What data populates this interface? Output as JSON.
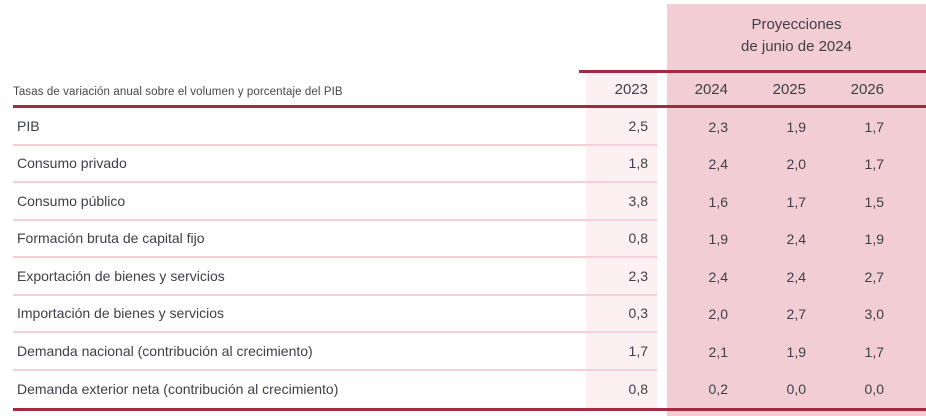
{
  "header": {
    "projections_title_line1": "Proyecciones",
    "projections_title_line2": "de junio de 2024",
    "row_label": "Tasas de variación anual sobre el volumen y porcentaje del PIB"
  },
  "table": {
    "years": [
      "2023",
      "2024",
      "2025",
      "2026"
    ],
    "rows": [
      {
        "label": "PIB",
        "values": [
          "2,5",
          "2,3",
          "1,9",
          "1,7"
        ]
      },
      {
        "label": "Consumo privado",
        "values": [
          "1,8",
          "2,4",
          "2,0",
          "1,7"
        ]
      },
      {
        "label": "Consumo público",
        "values": [
          "3,8",
          "1,6",
          "1,7",
          "1,5"
        ]
      },
      {
        "label": "Formación bruta de capital fijo",
        "values": [
          "0,8",
          "1,9",
          "2,4",
          "1,9"
        ]
      },
      {
        "label": "Exportación de bienes y servicios",
        "values": [
          "2,3",
          "2,4",
          "2,4",
          "2,7"
        ]
      },
      {
        "label": "Importación de bienes y servicios",
        "values": [
          "0,3",
          "2,0",
          "2,7",
          "3,0"
        ]
      },
      {
        "label": "Demanda nacional (contribución al crecimiento)",
        "values": [
          "1,7",
          "2,1",
          "1,9",
          "1,7"
        ]
      },
      {
        "label": "Demanda exterior neta (contribución al crecimiento)",
        "values": [
          "0,8",
          "0,2",
          "0,0",
          "0,0"
        ]
      }
    ]
  },
  "colors": {
    "accent_red": "#A12C42",
    "projection_pink": "#F2CDD4",
    "column_2023_pink": "#FCF0F3",
    "separator_pink": "#F5D0D9",
    "text": "#3E3F47"
  },
  "chart_data": {
    "type": "table",
    "title": "Proyecciones de junio de 2024",
    "note": "Tasas de variación anual sobre el volumen y porcentaje del PIB",
    "columns": [
      "2023",
      "2024",
      "2025",
      "2026"
    ],
    "rows": [
      {
        "label": "PIB",
        "values": [
          2.5,
          2.3,
          1.9,
          1.7
        ]
      },
      {
        "label": "Consumo privado",
        "values": [
          1.8,
          2.4,
          2.0,
          1.7
        ]
      },
      {
        "label": "Consumo público",
        "values": [
          3.8,
          1.6,
          1.7,
          1.5
        ]
      },
      {
        "label": "Formación bruta de capital fijo",
        "values": [
          0.8,
          1.9,
          2.4,
          1.9
        ]
      },
      {
        "label": "Exportación de bienes y servicios",
        "values": [
          2.3,
          2.4,
          2.4,
          2.7
        ]
      },
      {
        "label": "Importación de bienes y servicios",
        "values": [
          0.3,
          2.0,
          2.7,
          3.0
        ]
      },
      {
        "label": "Demanda nacional (contribución al crecimiento)",
        "values": [
          1.7,
          2.1,
          1.9,
          1.7
        ]
      },
      {
        "label": "Demanda exterior neta (contribución al crecimiento)",
        "values": [
          0.8,
          0.2,
          0.0,
          0.0
        ]
      }
    ]
  }
}
